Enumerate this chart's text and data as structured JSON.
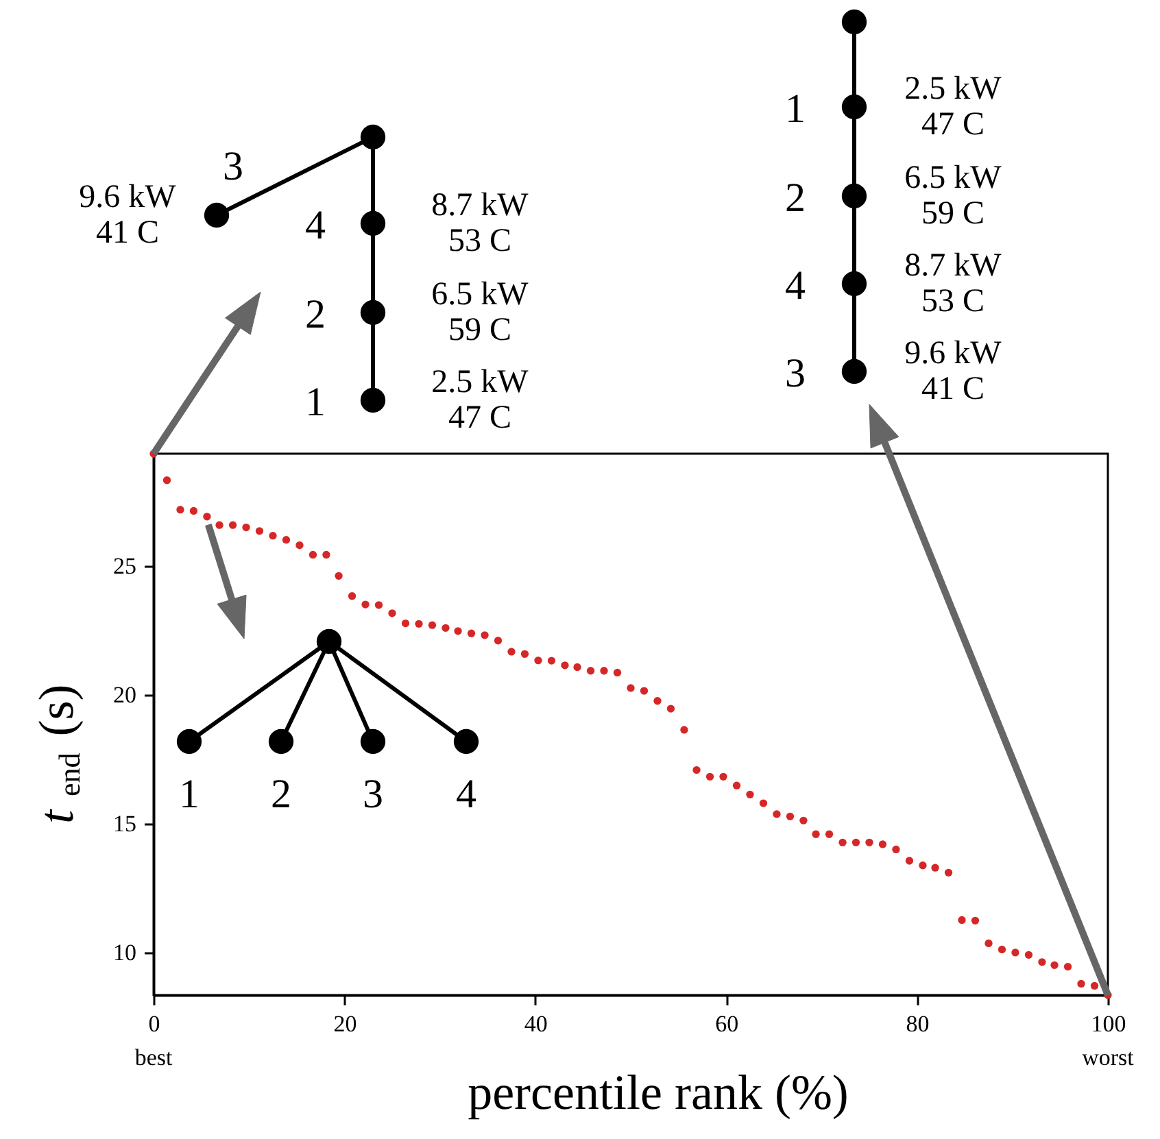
{
  "chart_data": {
    "type": "scatter",
    "xlabel": "percentile rank (%)",
    "ylabel": "t$_{end}$ (s)",
    "x": [
      0,
      1.4,
      2.8,
      4.2,
      5.6,
      6.9,
      8.3,
      9.7,
      11.1,
      12.5,
      13.9,
      15.3,
      16.7,
      18.1,
      19.4,
      20.8,
      22.2,
      23.6,
      25,
      26.4,
      27.8,
      29.2,
      30.6,
      31.9,
      33.3,
      34.7,
      36.1,
      37.5,
      38.9,
      40.3,
      41.7,
      43.1,
      44.4,
      45.8,
      47.2,
      48.6,
      50,
      51.4,
      52.8,
      54.2,
      55.6,
      56.9,
      58.3,
      59.7,
      61.1,
      62.5,
      63.9,
      65.3,
      66.7,
      68.1,
      69.4,
      70.8,
      72.2,
      73.6,
      75,
      76.4,
      77.8,
      79.2,
      80.6,
      81.9,
      83.3,
      84.7,
      86.1,
      87.5,
      88.9,
      90.3,
      91.7,
      93.1,
      94.4,
      95.8,
      97.2,
      98.6,
      100
    ],
    "series": [
      {
        "color": "#d62728",
        "values": [
          29.35,
          28.32,
          27.18,
          27.13,
          26.91,
          26.58,
          26.58,
          26.49,
          26.35,
          26.17,
          26.01,
          25.8,
          25.43,
          25.43,
          24.61,
          23.83,
          23.5,
          23.48,
          23.16,
          22.77,
          22.75,
          22.7,
          22.59,
          22.47,
          22.38,
          22.31,
          22.1,
          21.67,
          21.58,
          21.33,
          21.32,
          21.14,
          21.07,
          20.93,
          20.93,
          20.86,
          20.26,
          20.15,
          19.76,
          19.46,
          18.64,
          17.08,
          16.82,
          16.82,
          16.48,
          16.13,
          15.79,
          15.37,
          15.28,
          15.12,
          14.59,
          14.59,
          14.27,
          14.27,
          14.27,
          14.2,
          14.0,
          13.56,
          13.38,
          13.29,
          13.1,
          11.26,
          11.24,
          10.36,
          10.12,
          10.0,
          9.91,
          9.63,
          9.51,
          9.45,
          8.79,
          8.71,
          8.35
        ]
      }
    ],
    "xlim": [
      0,
      100
    ],
    "ylim": [
      8.35,
      29.35
    ],
    "xticks": [
      0,
      20,
      40,
      60,
      80,
      100
    ],
    "yticks": [
      10,
      15,
      20,
      25
    ],
    "grid": false,
    "marker": "circle",
    "annotations": [
      "best",
      "worst",
      "3",
      "9.6 kW\n41 C",
      "4",
      "8.7 kW\n53 C",
      "2",
      "6.5 kW\n59 C",
      "1",
      "2.5 kW\n47 C",
      "1",
      "2.5 kW\n47 C",
      "2",
      "6.5 kW\n59 C",
      "4",
      "8.7 kW\n53 C",
      "3",
      "9.6 kW\n41 C",
      "1",
      "2",
      "3",
      "4"
    ]
  }
}
